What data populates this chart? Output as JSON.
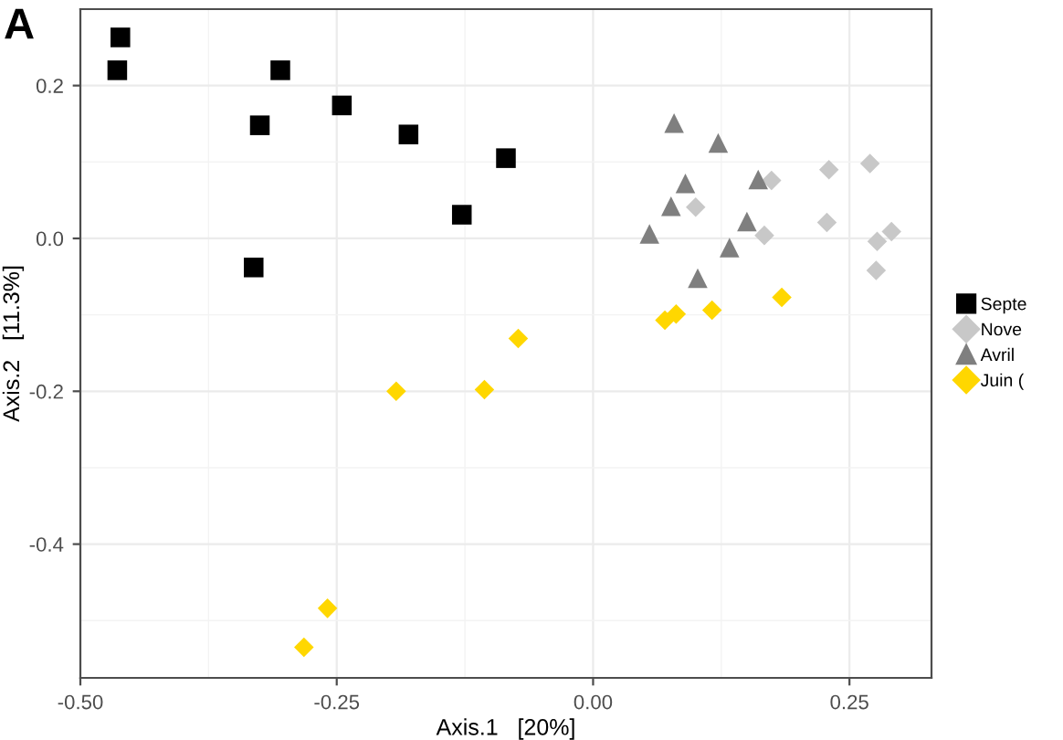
{
  "chart_data": {
    "type": "scatter",
    "title": "A",
    "xlabel": "Axis.1   [20%]",
    "ylabel": "Axis.2   [11.3%]",
    "xlim": [
      -0.5,
      0.33
    ],
    "ylim": [
      -0.575,
      0.3
    ],
    "xticks": [
      {
        "value": -0.5,
        "label": "-0.50"
      },
      {
        "value": -0.25,
        "label": "-0.25"
      },
      {
        "value": 0,
        "label": "0.00"
      },
      {
        "value": 0.25,
        "label": "0.25"
      }
    ],
    "yticks": [
      {
        "value": -0.4,
        "label": "-0.4"
      },
      {
        "value": -0.2,
        "label": "-0.2"
      },
      {
        "value": 0,
        "label": "0.0"
      },
      {
        "value": 0.2,
        "label": "0.2"
      }
    ],
    "grid": true,
    "legend": "right",
    "series": [
      {
        "name": "Septe",
        "color": "#000000",
        "marker": "square",
        "x": [
          -0.461,
          -0.464,
          -0.305,
          -0.325,
          -0.245,
          -0.18,
          -0.085,
          -0.128,
          -0.331
        ],
        "values": [
          0.263,
          0.22,
          0.22,
          0.148,
          0.174,
          0.136,
          0.105,
          0.031,
          -0.038
        ]
      },
      {
        "name": "Nove",
        "color": "#c8c8c8",
        "marker": "diamond",
        "x": [
          0.174,
          0.23,
          0.27,
          0.1,
          0.228,
          0.167,
          0.291,
          0.277,
          0.276
        ],
        "values": [
          0.076,
          0.09,
          0.098,
          0.041,
          0.021,
          0.004,
          0.009,
          -0.004,
          -0.042
        ]
      },
      {
        "name": "Avril",
        "color": "#7f7f7f",
        "marker": "triangle",
        "x": [
          0.079,
          0.122,
          0.09,
          0.161,
          0.076,
          0.15,
          0.055,
          0.133,
          0.102
        ],
        "values": [
          0.151,
          0.125,
          0.072,
          0.077,
          0.042,
          0.022,
          0.006,
          -0.012,
          -0.052
        ]
      },
      {
        "name": "Juin (",
        "color": "#ffd700",
        "marker": "diamond",
        "x": [
          0.184,
          0.116,
          0.081,
          0.07,
          -0.073,
          -0.192,
          -0.106,
          -0.259,
          -0.282
        ],
        "values": [
          -0.077,
          -0.094,
          -0.099,
          -0.107,
          -0.131,
          -0.2,
          -0.198,
          -0.484,
          -0.535
        ]
      }
    ]
  }
}
